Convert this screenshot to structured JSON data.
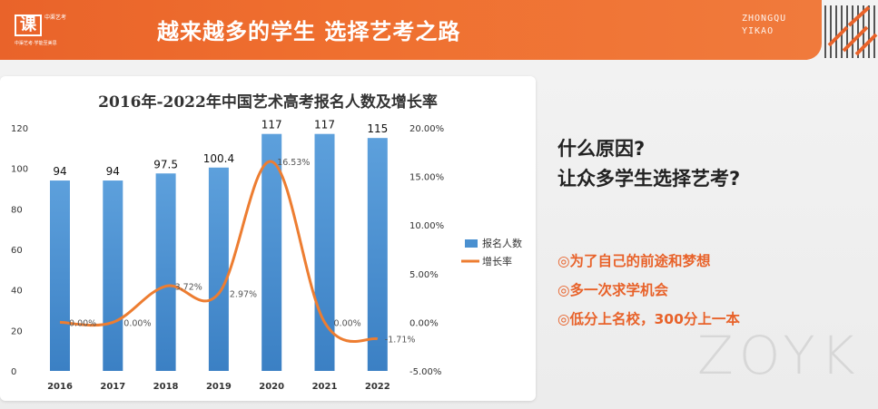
{
  "header": {
    "logo_mark": "课",
    "logo_side": "中渠艺考",
    "logo_sub": "中渠艺考·学能至美思",
    "title": "越来越多的学生 选择艺考之路",
    "brand_line1": "ZHONGQU",
    "brand_line2": "YIKAO"
  },
  "right_panel": {
    "question_line1": "什么原因?",
    "question_line2": "让众多学生选择艺考?",
    "reasons": [
      "◎为了自己的前途和梦想",
      "◎多一次求学机会",
      "◎低分上名校，300分上一本"
    ],
    "watermark": "ZOYK"
  },
  "colors": {
    "accent": "#e9632a",
    "bar": "#4a90d0",
    "line": "#ed7d31"
  },
  "chart_data": {
    "type": "bar",
    "title": "2016年-2022年中国艺术高考报名人数及增长率",
    "categories": [
      "2016",
      "2017",
      "2018",
      "2019",
      "2020",
      "2021",
      "2022"
    ],
    "series": [
      {
        "name": "报名人数",
        "type": "bar",
        "axis": "left",
        "values": [
          94,
          94,
          97.5,
          100.4,
          117,
          117,
          115
        ],
        "labels": [
          "94",
          "94",
          "97.5",
          "100.4",
          "117",
          "117",
          "115"
        ]
      },
      {
        "name": "增长率",
        "type": "line",
        "axis": "right",
        "values": [
          0.0,
          0.0,
          3.72,
          2.97,
          16.53,
          0.0,
          -1.71
        ],
        "labels": [
          "0.00%",
          "0.00%",
          "3.72%",
          "2.97%",
          "16.53%",
          "0.00%",
          "-1.71%"
        ]
      }
    ],
    "y_left": {
      "min": 0,
      "max": 120,
      "ticks": [
        "0",
        "20",
        "40",
        "60",
        "80",
        "100",
        "120"
      ]
    },
    "y_right": {
      "min": -5,
      "max": 20,
      "ticks": [
        "-5.00%",
        "0.00%",
        "5.00%",
        "10.00%",
        "15.00%",
        "20.00%"
      ]
    },
    "legend_position": "right",
    "grid": false
  }
}
